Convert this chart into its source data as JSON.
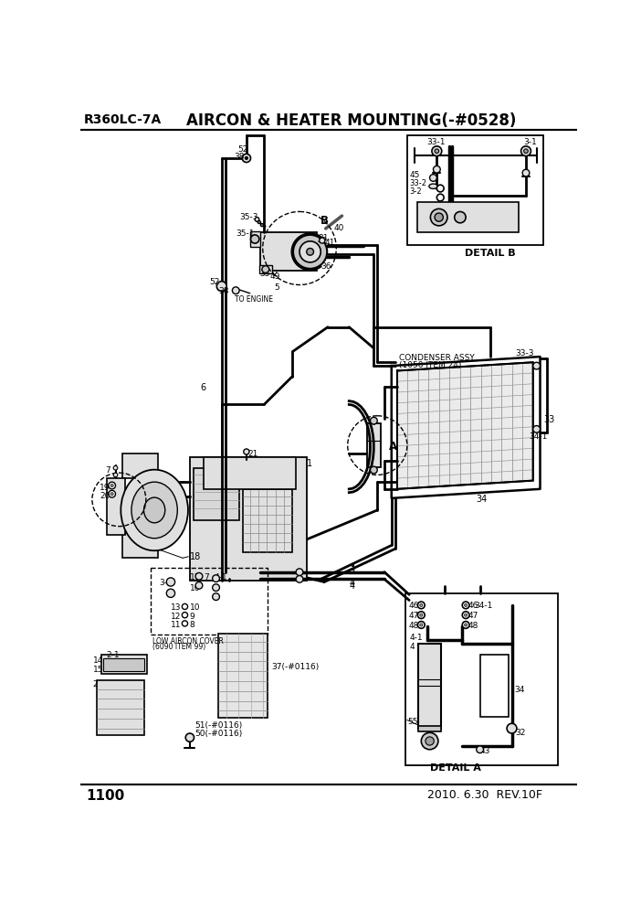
{
  "title": "AIRCON & HEATER MOUNTING(-#0528)",
  "model": "R360LC-7A",
  "page": "1100",
  "date": "2010. 6.30  REV.10F",
  "bg_color": "#ffffff",
  "line_color": "#000000",
  "font_color": "#000000",
  "gray1": "#c8c8c8",
  "gray2": "#e0e0e0",
  "gray3": "#a0a0a0",
  "pipe_lw": 2.0,
  "thin_lw": 1.0,
  "border_lw": 1.3
}
